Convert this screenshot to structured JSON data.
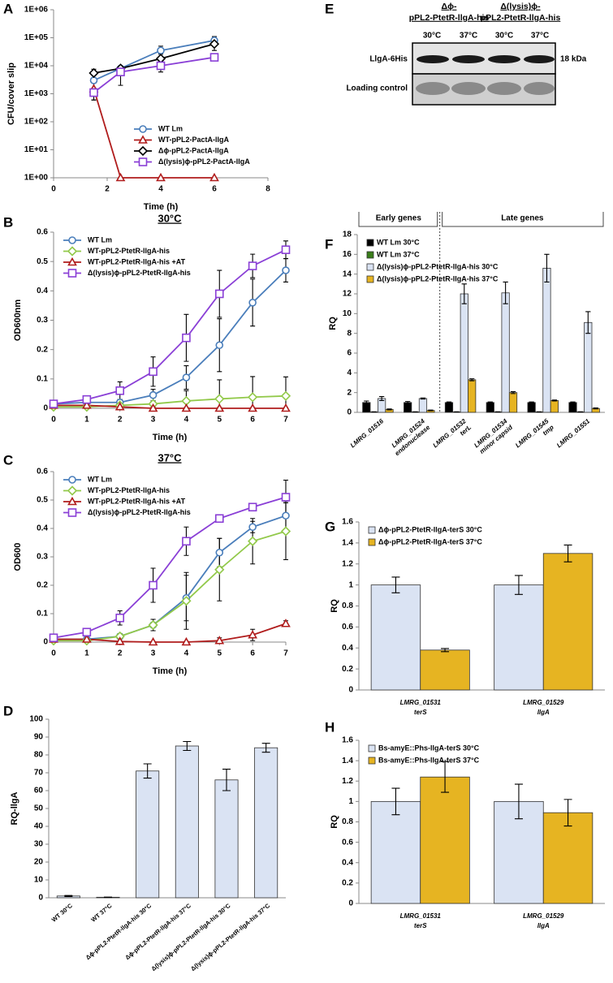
{
  "chart_data": [
    {
      "type": "line",
      "panel": "A",
      "yscale": "log",
      "ylabel": "CFU/cover slip",
      "xlabel": "Time (h)",
      "x": [
        1.5,
        2.5,
        4,
        6
      ],
      "xlim": [
        0,
        8
      ],
      "xticks": [
        0,
        2,
        4,
        6,
        8
      ],
      "ylim": [
        1,
        1000000
      ],
      "yticks": [
        {
          "value": 1,
          "label": "1E+00"
        },
        {
          "value": 10,
          "label": "1E+01"
        },
        {
          "value": 100,
          "label": "1E+02"
        },
        {
          "value": 1000,
          "label": "1E+03"
        },
        {
          "value": 10000,
          "label": "1E+04"
        },
        {
          "value": 100000,
          "label": "1E+05"
        },
        {
          "value": 1000000,
          "label": "1E+06"
        }
      ],
      "legend": "lower right",
      "series": [
        {
          "name": "WT Lm",
          "color": "#4a7ebb",
          "marker": "circle",
          "values": [
            3000,
            8000,
            35000,
            80000
          ],
          "errors": [
            1500,
            2000,
            15000,
            30000
          ]
        },
        {
          "name": "WT-pPL2-PactA-llgA",
          "color": "#b01c1c",
          "marker": "triangle",
          "values": [
            1500,
            1,
            1,
            1
          ],
          "errors": [
            900,
            0,
            0,
            0
          ]
        },
        {
          "name": "Δϕ-pPL2-PactA-llgA",
          "color": "#000000",
          "marker": "diamond",
          "values": [
            5500,
            8000,
            18000,
            60000
          ],
          "errors": [
            2000,
            1500,
            8000,
            25000
          ]
        },
        {
          "name": "Δ(lysis)ϕ-pPL2-PactA-llgA",
          "color": "#8a3fd6",
          "marker": "square",
          "values": [
            1100,
            6000,
            10000,
            20000
          ],
          "errors": [
            500,
            4000,
            4000,
            3000
          ]
        }
      ]
    },
    {
      "type": "line",
      "panel": "B",
      "title": "30°C",
      "ylabel": "OD600nm",
      "xlabel": "Time (h)",
      "x": [
        0,
        1,
        2,
        3,
        4,
        5,
        6,
        7
      ],
      "xlim": [
        0,
        7
      ],
      "xticks": [
        0,
        1,
        2,
        3,
        4,
        5,
        6,
        7
      ],
      "ylim": [
        0,
        0.6
      ],
      "yticks": [
        0,
        0.1,
        0.2,
        0.3,
        0.4,
        0.5,
        0.6
      ],
      "legend": "upper left",
      "series": [
        {
          "name": "WT Lm",
          "color": "#4a7ebb",
          "marker": "circle",
          "values": [
            0.015,
            0.02,
            0.02,
            0.045,
            0.105,
            0.215,
            0.36,
            0.47
          ],
          "errors": [
            0.003,
            0.01,
            0.01,
            0.02,
            0.04,
            0.09,
            0.08,
            0.04
          ]
        },
        {
          "name": "WT-pPL2-PtetR-llgA-his",
          "color": "#92c94a",
          "marker": "diamond",
          "values": [
            0.005,
            0.005,
            0.01,
            0.015,
            0.025,
            0.032,
            0.038,
            0.042
          ],
          "errors": [
            0.002,
            0.002,
            0.005,
            0.01,
            0.035,
            0.065,
            0.07,
            0.065
          ]
        },
        {
          "name": "WT-pPL2-PtetR-llgA-his +AT",
          "color": "#b01c1c",
          "marker": "triangle",
          "values": [
            0.01,
            0.01,
            0.005,
            0,
            0,
            0,
            0,
            0
          ],
          "errors": [
            0.002,
            0.002,
            0.002,
            0.002,
            0.002,
            0.002,
            0.002,
            0.002
          ]
        },
        {
          "name": "Δ(lysis)ϕ-pPL2-PtetR-llgA-his",
          "color": "#8a3fd6",
          "marker": "square",
          "values": [
            0.015,
            0.03,
            0.06,
            0.125,
            0.24,
            0.39,
            0.485,
            0.54
          ],
          "errors": [
            0.005,
            0.01,
            0.03,
            0.05,
            0.08,
            0.08,
            0.04,
            0.03
          ]
        }
      ]
    },
    {
      "type": "line",
      "panel": "C",
      "title": "37°C",
      "ylabel": "OD600",
      "xlabel": "Time (h)",
      "x": [
        0,
        1,
        2,
        3,
        4,
        5,
        6,
        7
      ],
      "xlim": [
        0,
        7
      ],
      "xticks": [
        0,
        1,
        2,
        3,
        4,
        5,
        6,
        7
      ],
      "ylim": [
        0,
        0.6
      ],
      "yticks": [
        0,
        0.1,
        0.2,
        0.3,
        0.4,
        0.5,
        0.6
      ],
      "legend": "upper left",
      "series": [
        {
          "name": "WT Lm",
          "color": "#4a7ebb",
          "marker": "circle",
          "values": [
            0.01,
            0.01,
            0.02,
            0.06,
            0.155,
            0.315,
            0.405,
            0.445
          ],
          "errors": [
            0.002,
            0.002,
            0.01,
            0.02,
            0.08,
            0.05,
            0.02,
            0.05
          ]
        },
        {
          "name": "WT-pPL2-PtetR-llgA-his",
          "color": "#92c94a",
          "marker": "diamond",
          "values": [
            0.005,
            0.005,
            0.02,
            0.06,
            0.145,
            0.255,
            0.355,
            0.39
          ],
          "errors": [
            0.002,
            0.002,
            0.01,
            0.02,
            0.1,
            0.11,
            0.08,
            0.1
          ]
        },
        {
          "name": "WT-pPL2-PtetR-llgA-his +AT",
          "color": "#b01c1c",
          "marker": "triangle",
          "values": [
            0.01,
            0.01,
            0.002,
            0,
            0,
            0.005,
            0.025,
            0.065
          ],
          "errors": [
            0.002,
            0.002,
            0.002,
            0.002,
            0.002,
            0.01,
            0.02,
            0.01
          ]
        },
        {
          "name": "Δ(lysis)ϕ-pPL2-PtetR-llgA-his",
          "color": "#8a3fd6",
          "marker": "square",
          "values": [
            0.015,
            0.035,
            0.085,
            0.2,
            0.355,
            0.435,
            0.475,
            0.51
          ],
          "errors": [
            0.005,
            0.01,
            0.025,
            0.06,
            0.05,
            0.01,
            0.01,
            0.06
          ]
        }
      ]
    },
    {
      "type": "bar",
      "panel": "D",
      "ylabel": "RQ-llgA",
      "categories": [
        "WT 30°C",
        "WT 37°C",
        "Δϕ-pPL2-PtetR-llgA-his 30°C",
        "Δϕ-pPL2-PtetR-llgA-his 37°C",
        "Δ(lysis)ϕ-pPL2-PtetR-llgA-his 30°C",
        "Δ(lysis)ϕ-pPL2-PtetR-llgA-his 37°C"
      ],
      "ylim": [
        0,
        100
      ],
      "yticks": [
        0,
        10,
        20,
        30,
        40,
        50,
        60,
        70,
        80,
        90,
        100
      ],
      "series": [
        {
          "color": "#dae3f3",
          "values": [
            1,
            0.3,
            71,
            85,
            66,
            84
          ],
          "errors": [
            0.3,
            0.1,
            4,
            2.5,
            6,
            2.5
          ]
        }
      ]
    },
    {
      "type": "bar",
      "panel": "F",
      "ylabel": "RQ",
      "legend": "upper left",
      "annotations": [
        "Early genes",
        "Late genes"
      ],
      "categories": [
        [
          "LMRG_01516"
        ],
        [
          "LMRG_01524",
          "endonuclease"
        ],
        [
          "LMRG_01532",
          "terL"
        ],
        [
          "LMRG_01534",
          "minor capsid"
        ],
        [
          "LMRG_01545",
          "tmp"
        ],
        [
          "LMRG_01551"
        ]
      ],
      "ylim": [
        0,
        18
      ],
      "yticks": [
        0,
        2,
        4,
        6,
        8,
        10,
        12,
        14,
        16,
        18
      ],
      "series": [
        {
          "name": "WT Lm 30°C",
          "color": "#000000",
          "values": [
            1,
            1,
            1,
            1,
            1,
            1
          ],
          "errors": [
            0.15,
            0.1,
            0.05,
            0.05,
            0.05,
            0.05
          ]
        },
        {
          "name": "WT Lm 37°C",
          "color": "#3a7d1a",
          "values": [
            0.05,
            0.05,
            0.05,
            0.05,
            0.05,
            0.05
          ],
          "errors": [
            0.01,
            0.01,
            0.01,
            0.01,
            0.01,
            0.01
          ]
        },
        {
          "name": "Δ(lysis)ϕ-pPL2-PtetR-llgA-his 30°C",
          "color": "#dae3f3",
          "values": [
            1.4,
            1.4,
            12,
            12.1,
            14.6,
            9.1
          ],
          "errors": [
            0.2,
            0.05,
            1,
            1.1,
            1.4,
            1.1
          ]
        },
        {
          "name": "Δ(lysis)ϕ-pPL2-PtetR-llgA-his 37°C",
          "color": "#e6b422",
          "values": [
            0.3,
            0.2,
            3.3,
            2,
            1.2,
            0.4
          ],
          "errors": [
            0.05,
            0.03,
            0.1,
            0.1,
            0.05,
            0.05
          ]
        }
      ]
    },
    {
      "type": "bar",
      "panel": "G",
      "ylabel": "RQ",
      "legend": "upper left",
      "categories": [
        [
          "LMRG_01531",
          "terS"
        ],
        [
          "LMRG_01529",
          "llgA"
        ]
      ],
      "ylim": [
        0,
        1.6
      ],
      "yticks": [
        0,
        0.2,
        0.4,
        0.6,
        0.8,
        1,
        1.2,
        1.4,
        1.6
      ],
      "series": [
        {
          "name": "Δϕ-pPL2-PtetR-llgA-terS 30°C",
          "color": "#dae3f3",
          "values": [
            1,
            1
          ],
          "errors": [
            0.075,
            0.09
          ]
        },
        {
          "name": "Δϕ-pPL2-PtetR-llgA-terS 37°C",
          "color": "#e6b422",
          "values": [
            0.38,
            1.3
          ],
          "errors": [
            0.015,
            0.08
          ]
        }
      ]
    },
    {
      "type": "bar",
      "panel": "H",
      "ylabel": "RQ",
      "legend": "upper left",
      "categories": [
        [
          "LMRG_01531",
          "terS"
        ],
        [
          "LMRG_01529",
          "llgA"
        ]
      ],
      "ylim": [
        0,
        1.6
      ],
      "yticks": [
        0,
        0.2,
        0.4,
        0.6,
        0.8,
        1,
        1.2,
        1.4,
        1.6
      ],
      "series": [
        {
          "name": "Bs-amyE::Phs-llgA-terS 30°C",
          "color": "#dae3f3",
          "values": [
            1,
            1
          ],
          "errors": [
            0.13,
            0.17
          ]
        },
        {
          "name": "Bs-amyE::Phs-llgA-terS 37°C",
          "color": "#e6b422",
          "values": [
            1.24,
            0.89
          ],
          "errors": [
            0.15,
            0.13
          ]
        }
      ]
    }
  ],
  "blot": {
    "panel": "E",
    "columns": [
      {
        "label": [
          "Δϕ-",
          "pPL2-PtetR-llgA-his"
        ],
        "temps": [
          "30°C",
          "37°C"
        ]
      },
      {
        "label": [
          "Δ(lysis)ϕ-",
          "pPL2-PtetR-llgA-his"
        ],
        "temps": [
          "30°C",
          "37°C"
        ]
      }
    ],
    "rows": [
      "LlgA-6His",
      "Loading control"
    ],
    "size": "18 kDa"
  }
}
